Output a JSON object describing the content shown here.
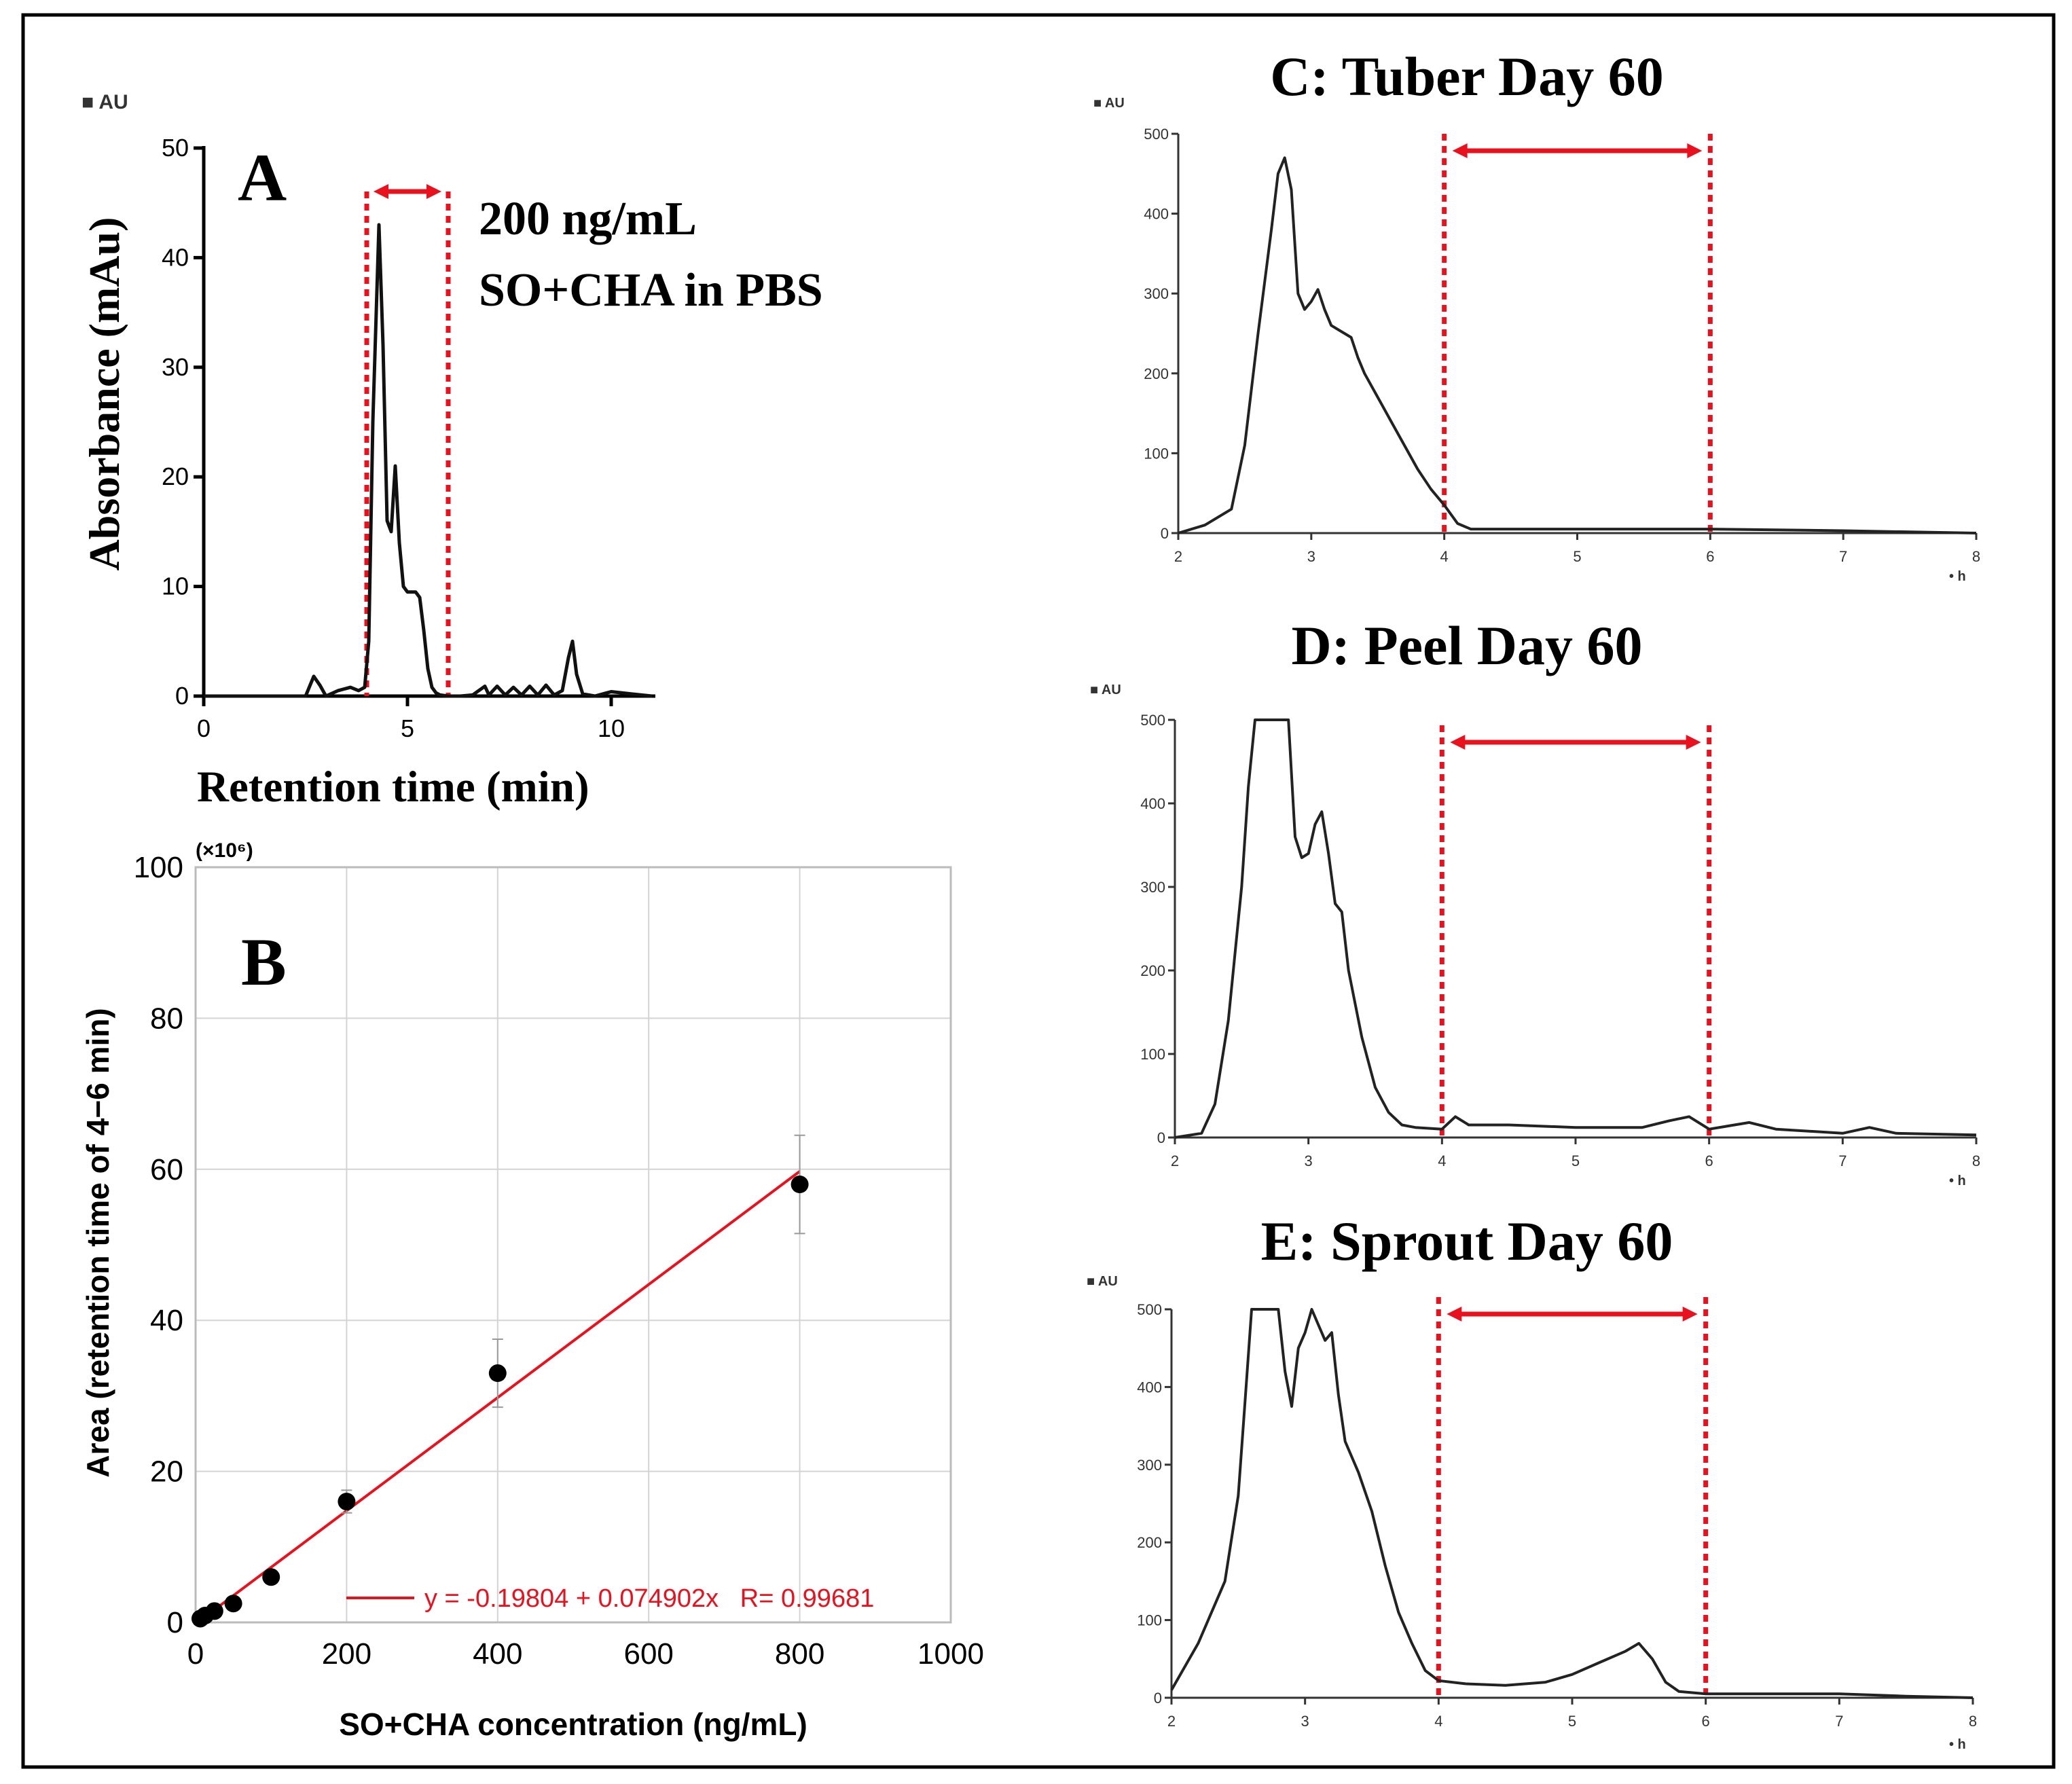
{
  "chart_data": [
    {
      "panel": "A",
      "type": "line",
      "panel_letter": "A",
      "annotation_line1": "200 ng/mL",
      "annotation_line2": "SO+CHA in PBS",
      "unit_label": "AU",
      "xlabel": "Retention time (min)",
      "ylabel": "Absorbance (mAu)",
      "xlim": [
        0,
        11
      ],
      "ylim": [
        0,
        50
      ],
      "x_ticks": [
        0,
        5,
        10
      ],
      "y_ticks": [
        0,
        10,
        20,
        30,
        40,
        50
      ],
      "highlight_range": [
        4,
        6
      ],
      "series": [
        {
          "x": [
            0,
            2.5,
            2.7,
            2.85,
            3.0,
            3.3,
            3.6,
            3.8,
            3.95,
            4.05,
            4.15,
            4.3,
            4.4,
            4.5,
            4.6,
            4.7,
            4.8,
            4.9,
            5.0,
            5.1,
            5.2,
            5.3,
            5.4,
            5.5,
            5.6,
            5.7,
            5.8,
            6.0,
            6.3,
            6.6,
            6.9,
            7.0,
            7.2,
            7.4,
            7.6,
            7.8,
            8.0,
            8.2,
            8.4,
            8.6,
            8.8,
            8.95,
            9.05,
            9.15,
            9.3,
            9.6,
            10.0,
            10.5,
            11.0
          ],
          "y": [
            0,
            0,
            1.8,
            1.0,
            0,
            0.5,
            0.8,
            0.5,
            0.8,
            5,
            25,
            43,
            32,
            16,
            15,
            21,
            14,
            10,
            9.5,
            9.5,
            9.5,
            9.0,
            6,
            2.5,
            0.8,
            0.3,
            0.1,
            0,
            0,
            0.1,
            0.9,
            0.1,
            0.9,
            0.1,
            0.8,
            0.1,
            0.9,
            0.1,
            1.0,
            0.1,
            0.5,
            3.5,
            5.0,
            2.0,
            0.2,
            0,
            0.4,
            0.2,
            0
          ]
        }
      ]
    },
    {
      "panel": "B",
      "type": "scatter",
      "panel_letter": "B",
      "xlabel": "SO+CHA concentration (ng/mL)",
      "ylabel": "Area (retention time of 4−6 min)",
      "y_multiplier": "(×10⁶)",
      "xlim": [
        0,
        1000
      ],
      "ylim": [
        0,
        100
      ],
      "x_ticks": [
        0,
        200,
        400,
        600,
        800,
        1000
      ],
      "y_ticks": [
        0,
        20,
        40,
        60,
        80,
        100
      ],
      "grid": true,
      "fit_label": "y = -0.19804 + 0.074902x   R= 0.99681",
      "fit": {
        "intercept": -0.19804,
        "slope": 0.074902,
        "x_range": [
          20,
          800
        ]
      },
      "points": {
        "x": [
          6.25,
          12.5,
          25,
          50,
          100,
          200,
          400,
          800
        ],
        "y": [
          0.5,
          0.9,
          1.5,
          2.5,
          6.0,
          16.0,
          33.0,
          58.0
        ],
        "err": [
          0,
          0,
          0,
          0,
          0,
          1.5,
          4.5,
          6.5
        ]
      },
      "legend_position": "bottom-right"
    },
    {
      "panel": "C",
      "type": "line",
      "title": "C: Tuber Day 60",
      "unit_label": "AU",
      "corner_label": "• h",
      "xlim": [
        2,
        8
      ],
      "ylim": [
        0,
        500
      ],
      "x_ticks": [
        2,
        3,
        4,
        5,
        6,
        7,
        8
      ],
      "y_ticks": [
        0,
        100,
        200,
        300,
        400,
        500
      ],
      "highlight_range": [
        4,
        6
      ],
      "series": [
        {
          "x": [
            2.0,
            2.2,
            2.4,
            2.5,
            2.6,
            2.7,
            2.75,
            2.8,
            2.85,
            2.9,
            2.95,
            3.0,
            3.05,
            3.1,
            3.15,
            3.2,
            3.3,
            3.35,
            3.4,
            3.5,
            3.6,
            3.7,
            3.8,
            3.9,
            4.0,
            4.1,
            4.2,
            4.5,
            5.0,
            6.0,
            7.0,
            8.0
          ],
          "y": [
            0,
            10,
            30,
            110,
            250,
            380,
            450,
            470,
            430,
            300,
            280,
            290,
            305,
            280,
            260,
            255,
            245,
            220,
            200,
            170,
            140,
            110,
            80,
            55,
            35,
            12,
            5,
            5,
            5,
            5,
            3,
            0
          ]
        }
      ]
    },
    {
      "panel": "D",
      "type": "line",
      "title": "D: Peel Day 60",
      "unit_label": "AU",
      "corner_label": "• h",
      "xlim": [
        2,
        8
      ],
      "ylim": [
        0,
        500
      ],
      "x_ticks": [
        2,
        3,
        4,
        5,
        6,
        7,
        8
      ],
      "y_ticks": [
        0,
        100,
        200,
        300,
        400,
        500
      ],
      "highlight_range": [
        4,
        6
      ],
      "series": [
        {
          "x": [
            2.0,
            2.2,
            2.3,
            2.4,
            2.5,
            2.55,
            2.6,
            2.65,
            2.7,
            2.85,
            2.9,
            2.95,
            3.0,
            3.05,
            3.1,
            3.15,
            3.2,
            3.25,
            3.3,
            3.4,
            3.5,
            3.6,
            3.7,
            3.8,
            4.0,
            4.1,
            4.2,
            4.5,
            5.0,
            5.5,
            5.7,
            5.85,
            6.0,
            6.3,
            6.5,
            7.0,
            7.2,
            7.4,
            8.0
          ],
          "y": [
            0,
            5,
            40,
            140,
            300,
            420,
            500,
            500,
            500,
            500,
            360,
            335,
            340,
            375,
            390,
            340,
            280,
            270,
            200,
            120,
            60,
            30,
            15,
            12,
            10,
            25,
            15,
            15,
            12,
            12,
            20,
            25,
            10,
            18,
            10,
            5,
            12,
            5,
            3
          ]
        }
      ]
    },
    {
      "panel": "E",
      "type": "line",
      "title": "E: Sprout Day 60",
      "unit_label": "AU",
      "corner_label": "• h",
      "xlim": [
        2,
        8
      ],
      "ylim": [
        0,
        500
      ],
      "x_ticks": [
        2,
        3,
        4,
        5,
        6,
        7,
        8
      ],
      "y_ticks": [
        0,
        100,
        200,
        300,
        400,
        500
      ],
      "highlight_range": [
        4,
        6
      ],
      "series": [
        {
          "x": [
            2.0,
            2.2,
            2.4,
            2.5,
            2.55,
            2.6,
            2.65,
            2.8,
            2.85,
            2.9,
            2.95,
            3.0,
            3.05,
            3.1,
            3.15,
            3.2,
            3.25,
            3.3,
            3.4,
            3.5,
            3.6,
            3.7,
            3.8,
            3.9,
            4.0,
            4.2,
            4.5,
            4.8,
            5.0,
            5.2,
            5.4,
            5.5,
            5.6,
            5.7,
            5.8,
            6.0,
            6.5,
            7.0,
            7.5,
            8.0
          ],
          "y": [
            10,
            70,
            150,
            260,
            380,
            500,
            500,
            500,
            420,
            375,
            450,
            470,
            500,
            480,
            460,
            470,
            390,
            330,
            290,
            240,
            170,
            110,
            70,
            35,
            22,
            18,
            16,
            20,
            30,
            45,
            60,
            70,
            50,
            20,
            8,
            5,
            5,
            5,
            2,
            0
          ]
        }
      ]
    }
  ]
}
